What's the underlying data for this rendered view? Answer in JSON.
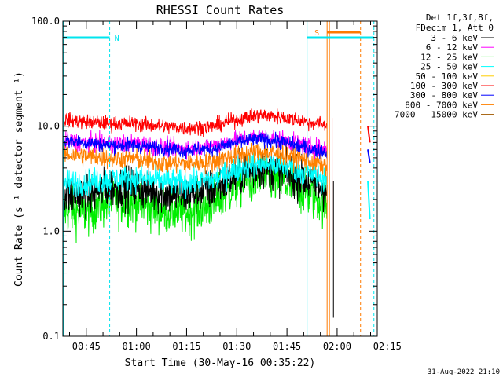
{
  "chart_data": {
    "type": "line",
    "title": "RHESSI Count Rates",
    "xlabel": "Start Time (30-May-16 00:35:22)",
    "ylabel": "Count Rate (s⁻¹ detector segment⁻¹)",
    "yscale": "log",
    "ylim": [
      0.1,
      100.0
    ],
    "yticks": [
      "0.1",
      "1.0",
      "10.0",
      "100.0"
    ],
    "xlim_minutes": [
      38,
      132
    ],
    "xticks": [
      {
        "label": "00:45",
        "min": 45
      },
      {
        "label": "01:00",
        "min": 60
      },
      {
        "label": "01:15",
        "min": 75
      },
      {
        "label": "01:30",
        "min": 90
      },
      {
        "label": "01:45",
        "min": 105
      },
      {
        "label": "02:00",
        "min": 120
      },
      {
        "label": "02:15",
        "min": 135
      }
    ],
    "legend": {
      "placement": "top-right outside",
      "header": [
        "Det 1f,3f,8f,",
        "FDecim 1, Att 0"
      ],
      "entries": [
        {
          "name": "3 - 6 keV",
          "color": "#000000"
        },
        {
          "name": "6 - 12 keV",
          "color": "#ff00ff"
        },
        {
          "name": "12 - 25 keV",
          "color": "#00ee00"
        },
        {
          "name": "25 - 50 keV",
          "color": "#00ffff"
        },
        {
          "name": "50 - 100 keV",
          "color": "#ffcc00"
        },
        {
          "name": "100 - 300 keV",
          "color": "#ff0000"
        },
        {
          "name": "300 - 800 keV",
          "color": "#0000ff"
        },
        {
          "name": "800 - 7000 keV",
          "color": "#ff8000"
        },
        {
          "name": "7000 - 15000 keV",
          "color": "#a05a00"
        }
      ]
    },
    "series": [
      {
        "name": "12 - 25 keV",
        "color": "#00ee00",
        "noise": 0.16,
        "x": [
          38,
          45,
          52,
          60,
          67,
          75,
          83,
          90,
          97,
          104,
          111,
          117
        ],
        "values": [
          1.6,
          1.5,
          1.9,
          1.9,
          1.6,
          1.5,
          1.8,
          2.7,
          3.3,
          2.9,
          2.3,
          1.8
        ]
      },
      {
        "name": "3 - 6 keV",
        "color": "#000000",
        "noise": 0.14,
        "x": [
          38,
          45,
          52,
          60,
          67,
          75,
          83,
          90,
          97,
          104,
          111,
          117
        ],
        "values": [
          2.2,
          2.2,
          2.6,
          2.6,
          2.3,
          2.2,
          2.5,
          3.4,
          4.0,
          3.6,
          3.0,
          2.4
        ]
      },
      {
        "name": "25 - 50 keV",
        "color": "#00ffff",
        "noise": 0.09,
        "x": [
          38,
          45,
          52,
          60,
          67,
          75,
          83,
          90,
          97,
          104,
          111,
          117
        ],
        "values": [
          2.9,
          2.9,
          3.1,
          3.2,
          3.0,
          2.9,
          3.1,
          3.9,
          4.5,
          4.2,
          3.6,
          3.1
        ]
      },
      {
        "name": "800 - 7000 keV",
        "color": "#ff8000",
        "noise": 0.07,
        "x": [
          38,
          45,
          52,
          60,
          67,
          75,
          83,
          90,
          97,
          104,
          111,
          117
        ],
        "values": [
          5.4,
          5.2,
          5.0,
          4.9,
          4.5,
          4.4,
          4.6,
          5.3,
          5.7,
          5.4,
          4.7,
          4.2
        ]
      },
      {
        "name": "6 - 12 keV",
        "color": "#ff00ff",
        "noise": 0.06,
        "x": [
          38,
          45,
          52,
          60,
          67,
          75,
          83,
          90,
          97,
          104,
          111,
          117
        ],
        "values": [
          7.2,
          7.0,
          6.8,
          6.9,
          6.3,
          6.2,
          6.5,
          7.4,
          8.0,
          7.4,
          6.5,
          6.0
        ]
      },
      {
        "name": "300 - 800 keV",
        "color": "#0000ff",
        "noise": 0.05,
        "x": [
          38,
          45,
          52,
          60,
          67,
          75,
          83,
          90,
          97,
          104,
          111,
          117
        ],
        "values": [
          7.3,
          7.0,
          6.6,
          6.6,
          6.2,
          5.9,
          6.1,
          7.0,
          7.6,
          7.0,
          6.2,
          5.6
        ]
      },
      {
        "name": "100 - 300 keV",
        "color": "#ff0000",
        "noise": 0.05,
        "x": [
          38,
          45,
          52,
          60,
          67,
          75,
          83,
          90,
          97,
          104,
          111,
          117
        ],
        "values": [
          11.5,
          11.0,
          10.6,
          10.6,
          10.0,
          9.6,
          10.0,
          11.6,
          12.8,
          12.2,
          11.0,
          10.2
        ]
      }
    ],
    "attenuator_segments": [
      {
        "series": "100 - 300 keV",
        "x": [
          129.2,
          129.8
        ],
        "values": [
          10.0,
          7.0
        ]
      },
      {
        "series": "300 - 800 keV",
        "x": [
          129.2,
          129.8
        ],
        "values": [
          6.0,
          4.5
        ]
      },
      {
        "series": "25 - 50 keV",
        "x": [
          129.2,
          129.8
        ],
        "values": [
          3.0,
          1.3
        ]
      }
    ],
    "flags": [
      {
        "label": "N",
        "color": "#00e5ee",
        "x": [
          38,
          52
        ]
      },
      {
        "label": "",
        "color": "#00e5ee",
        "x": [
          111,
          131
        ]
      },
      {
        "label": "S",
        "color": "#ff7a00",
        "x": [
          117,
          127
        ]
      }
    ],
    "vlines": [
      {
        "x": 38.2,
        "color": "#00e5ee",
        "style": "solid"
      },
      {
        "x": 52,
        "color": "#00e5ee",
        "style": "dashed"
      },
      {
        "x": 111,
        "color": "#00e5ee",
        "style": "solid"
      },
      {
        "x": 117,
        "color": "#ff7a00",
        "style": "solid"
      },
      {
        "x": 117.7,
        "color": "#ff7a00",
        "style": "solid"
      },
      {
        "x": 127,
        "color": "#ff7a00",
        "style": "dashed"
      },
      {
        "x": 131,
        "color": "#00e5ee",
        "style": "dashed"
      }
    ],
    "spikes": [
      {
        "x": 118.5,
        "top": 12.0,
        "bottom": 1.0,
        "color": "#ff0000"
      },
      {
        "x": 118.9,
        "top": 3.0,
        "bottom": 0.15,
        "color": "#000000"
      }
    ]
  },
  "footer": {
    "timestamp": "31-Aug-2022 21:10"
  }
}
